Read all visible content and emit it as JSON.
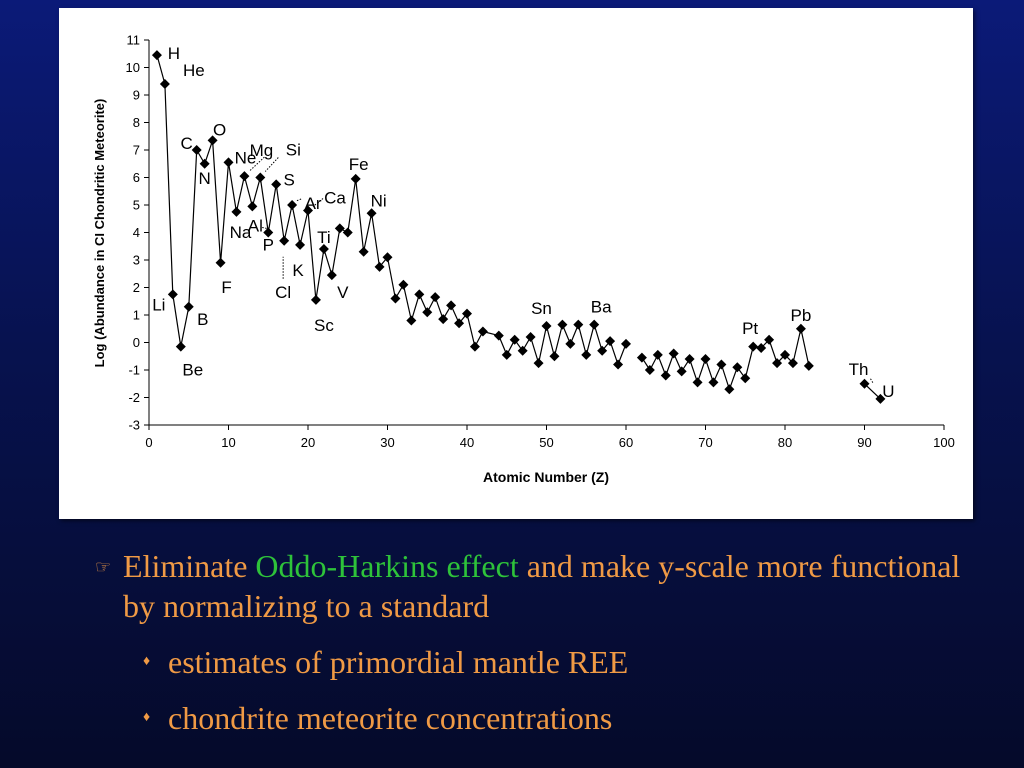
{
  "chart_data": {
    "type": "line",
    "xlabel": "Atomic Number (Z)",
    "ylabel": "Log (Abundance in CI Chondritic Meteorite)",
    "xlim": [
      0,
      100
    ],
    "ylim": [
      -3,
      11
    ],
    "x_ticks": [
      0,
      10,
      20,
      30,
      40,
      50,
      60,
      70,
      80,
      90,
      100
    ],
    "y_ticks": [
      -3,
      -2,
      -1,
      0,
      1,
      2,
      3,
      4,
      5,
      6,
      7,
      8,
      9,
      10,
      11
    ],
    "grid": false,
    "marker": "diamond",
    "segments": [
      [
        [
          1,
          10.45
        ],
        [
          2,
          9.4
        ],
        [
          3,
          1.75
        ],
        [
          4,
          -0.15
        ],
        [
          5,
          1.3
        ],
        [
          6,
          7.0
        ],
        [
          7,
          6.5
        ],
        [
          8,
          7.35
        ],
        [
          9,
          2.9
        ],
        [
          10,
          6.55
        ],
        [
          11,
          4.75
        ],
        [
          12,
          6.05
        ],
        [
          13,
          4.95
        ],
        [
          14,
          6.0
        ],
        [
          15,
          4.0
        ],
        [
          16,
          5.75
        ],
        [
          17,
          3.7
        ],
        [
          18,
          5.0
        ],
        [
          19,
          3.55
        ],
        [
          20,
          4.8
        ],
        [
          21,
          1.55
        ],
        [
          22,
          3.4
        ],
        [
          23,
          2.45
        ],
        [
          24,
          4.15
        ],
        [
          25,
          4.0
        ],
        [
          26,
          5.95
        ],
        [
          27,
          3.3
        ],
        [
          28,
          4.7
        ],
        [
          29,
          2.75
        ],
        [
          30,
          3.1
        ],
        [
          31,
          1.6
        ],
        [
          32,
          2.1
        ],
        [
          33,
          0.8
        ],
        [
          34,
          1.75
        ],
        [
          35,
          1.1
        ],
        [
          36,
          1.65
        ],
        [
          37,
          0.85
        ],
        [
          38,
          1.35
        ],
        [
          39,
          0.7
        ],
        [
          40,
          1.05
        ],
        [
          41,
          -0.15
        ],
        [
          42,
          0.4
        ],
        [
          44,
          0.25
        ],
        [
          45,
          -0.45
        ],
        [
          46,
          0.1
        ],
        [
          47,
          -0.3
        ],
        [
          48,
          0.2
        ],
        [
          49,
          -0.75
        ],
        [
          50,
          0.6
        ],
        [
          51,
          -0.5
        ],
        [
          52,
          0.65
        ],
        [
          53,
          -0.05
        ],
        [
          54,
          0.65
        ],
        [
          55,
          -0.45
        ],
        [
          56,
          0.65
        ],
        [
          57,
          -0.3
        ],
        [
          58,
          0.05
        ],
        [
          59,
          -0.8
        ],
        [
          60,
          -0.05
        ]
      ],
      [
        [
          62,
          -0.55
        ],
        [
          63,
          -1.0
        ],
        [
          64,
          -0.45
        ],
        [
          65,
          -1.2
        ],
        [
          66,
          -0.4
        ],
        [
          67,
          -1.05
        ],
        [
          68,
          -0.6
        ],
        [
          69,
          -1.45
        ],
        [
          70,
          -0.6
        ],
        [
          71,
          -1.45
        ],
        [
          72,
          -0.8
        ],
        [
          73,
          -1.7
        ],
        [
          74,
          -0.9
        ],
        [
          75,
          -1.3
        ],
        [
          76,
          -0.15
        ],
        [
          77,
          -0.2
        ],
        [
          78,
          0.1
        ],
        [
          79,
          -0.75
        ],
        [
          80,
          -0.45
        ],
        [
          81,
          -0.75
        ],
        [
          82,
          0.5
        ],
        [
          83,
          -0.85
        ]
      ],
      [
        [
          90,
          -1.5
        ],
        [
          92,
          -2.05
        ]
      ]
    ],
    "element_labels": [
      {
        "text": "H",
        "x": 1,
        "y": 10.45
      },
      {
        "text": "He",
        "x": 2,
        "y": 9.4
      },
      {
        "text": "Li",
        "x": 3,
        "y": 1.75
      },
      {
        "text": "Be",
        "x": 4,
        "y": -0.15
      },
      {
        "text": "B",
        "x": 5,
        "y": 1.3
      },
      {
        "text": "C",
        "x": 6,
        "y": 7.0
      },
      {
        "text": "N",
        "x": 7,
        "y": 6.5
      },
      {
        "text": "O",
        "x": 8,
        "y": 7.35
      },
      {
        "text": "F",
        "x": 9,
        "y": 2.9
      },
      {
        "text": "Ne",
        "x": 10,
        "y": 6.55
      },
      {
        "text": "Na",
        "x": 11,
        "y": 4.75
      },
      {
        "text": "Mg",
        "x": 12,
        "y": 6.05
      },
      {
        "text": "Al",
        "x": 13,
        "y": 4.95
      },
      {
        "text": "Si",
        "x": 14,
        "y": 6.0
      },
      {
        "text": "P",
        "x": 15,
        "y": 4.0
      },
      {
        "text": "S",
        "x": 16,
        "y": 5.75
      },
      {
        "text": "Cl",
        "x": 17,
        "y": 3.7
      },
      {
        "text": "Ar",
        "x": 18,
        "y": 5.0
      },
      {
        "text": "K",
        "x": 19,
        "y": 3.55
      },
      {
        "text": "Ca",
        "x": 20,
        "y": 4.8
      },
      {
        "text": "Sc",
        "x": 21,
        "y": 1.55
      },
      {
        "text": "Ti",
        "x": 22,
        "y": 3.4
      },
      {
        "text": "V",
        "x": 23,
        "y": 2.45
      },
      {
        "text": "Fe",
        "x": 26,
        "y": 5.95
      },
      {
        "text": "Ni",
        "x": 28,
        "y": 4.7
      },
      {
        "text": "Sn",
        "x": 50,
        "y": 0.6
      },
      {
        "text": "Ba",
        "x": 56,
        "y": 0.65
      },
      {
        "text": "Pt",
        "x": 78,
        "y": 0.1
      },
      {
        "text": "Pb",
        "x": 82,
        "y": 0.5
      },
      {
        "text": "Th",
        "x": 90,
        "y": -1.5
      },
      {
        "text": "U",
        "x": 92,
        "y": -2.05
      }
    ]
  },
  "bullets": {
    "main": {
      "icon": "pointing-hand-icon",
      "text_before": "Eliminate ",
      "highlight": "Oddo-Harkins effect",
      "highlight_color": "#2ec33a",
      "text_after": " and make y-scale more functional by normalizing to a standard"
    },
    "sub_icon": "diamond-bullet-icon",
    "subs": [
      "estimates of primordial mantle REE",
      "chondrite meteorite concentrations"
    ]
  },
  "colors": {
    "bullet_text": "#f09a45",
    "chart_background": "#ffffff",
    "slide_background": "#0b1a78"
  }
}
